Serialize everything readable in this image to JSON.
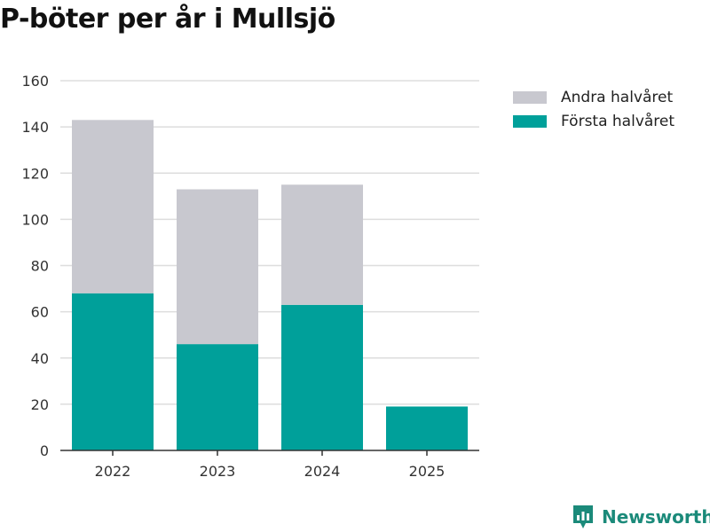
{
  "colors": {
    "first_half": "#00a09a",
    "second_half": "#c8c8cf",
    "grid": "#dddddd",
    "axis": "#333333",
    "brand": "#1b8a7a"
  },
  "chart_data": {
    "type": "bar",
    "stacked": true,
    "title": "P-böter per år i Mullsjö",
    "xlabel": "",
    "ylabel": "",
    "categories": [
      "2022",
      "2023",
      "2024",
      "2025"
    ],
    "series": [
      {
        "name": "Första halvåret",
        "values": [
          68,
          46,
          63,
          19
        ]
      },
      {
        "name": "Andra halvåret",
        "values": [
          75,
          67,
          52,
          0
        ]
      }
    ],
    "ylim": [
      0,
      160
    ],
    "yticks": [
      0,
      20,
      40,
      60,
      80,
      100,
      120,
      140,
      160
    ],
    "grid": true,
    "legend_position": "top-right"
  },
  "legend": {
    "items": [
      "Andra halvåret",
      "Första halvåret"
    ]
  },
  "brand": {
    "name": "Newsworthy"
  }
}
